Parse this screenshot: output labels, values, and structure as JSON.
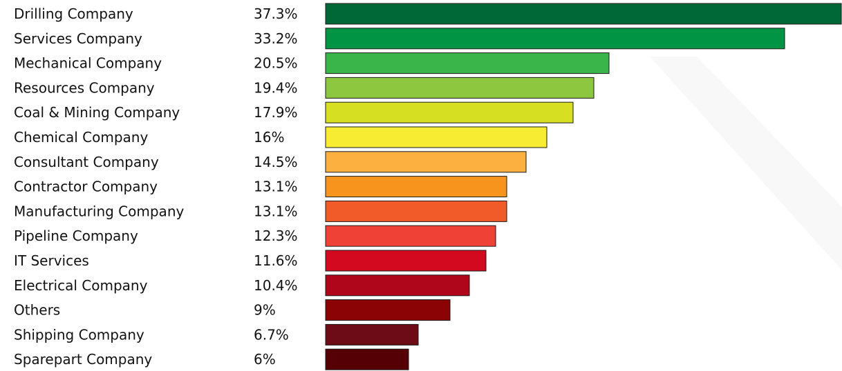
{
  "chart_data": {
    "type": "bar",
    "orientation": "horizontal",
    "categories": [
      "Drilling Company",
      "Services Company",
      "Mechanical Company",
      "Resources Company",
      "Coal & Mining Company",
      "Chemical Company",
      "Consultant Company",
      "Contractor Company",
      "Manufacturing Company",
      "Pipeline Company",
      "IT Services",
      "Electrical Company",
      "Others",
      "Shipping Company",
      "Sparepart Company"
    ],
    "values": [
      37.3,
      33.2,
      20.5,
      19.4,
      17.9,
      16,
      14.5,
      13.1,
      13.1,
      12.3,
      11.6,
      10.4,
      9,
      6.7,
      6
    ],
    "value_labels": [
      "37.3%",
      "33.2%",
      "20.5%",
      "19.4%",
      "17.9%",
      "16%",
      "14.5%",
      "13.1%",
      "13.1%",
      "12.3%",
      "11.6%",
      "10.4%",
      "9%",
      "6.7%",
      "6%"
    ],
    "colors": [
      "#006837",
      "#009444",
      "#39b54a",
      "#8dc63f",
      "#d7df23",
      "#f7ec31",
      "#fbb040",
      "#f7941d",
      "#f15a29",
      "#ef4136",
      "#d2091f",
      "#b0061c",
      "#8b0304",
      "#6d0c16",
      "#540004"
    ],
    "xlim": [
      0,
      37.3
    ],
    "grid": false,
    "legend": "none"
  }
}
